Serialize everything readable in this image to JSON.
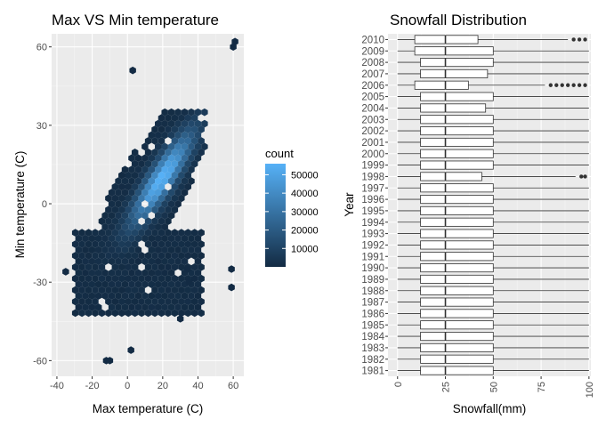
{
  "chart_data": [
    {
      "type": "heatmap",
      "subtype": "hexbin",
      "title": "Max VS Min temperature",
      "xlabel": "Max temperature (C)",
      "ylabel": "Min temperature (C)",
      "xlim": [
        -43,
        66
      ],
      "ylim": [
        -66,
        65
      ],
      "x_ticks": [
        -40,
        -20,
        0,
        20,
        40,
        60
      ],
      "y_ticks": [
        -60,
        -30,
        0,
        30,
        60
      ],
      "grid": true,
      "legend": {
        "title": "count",
        "position": "right",
        "breaks": [
          10000,
          20000,
          30000,
          40000,
          50000
        ],
        "labels": [
          "10000",
          "20000",
          "30000",
          "40000",
          "50000"
        ],
        "range": [
          0,
          56000
        ],
        "low_color": "#132B43",
        "high_color": "#56B1F7"
      },
      "density_model": {
        "peak": 56000,
        "center_x": 10,
        "center_y": 2,
        "core": [
          {
            "x": 0,
            "y": -4,
            "count": 38000
          },
          {
            "x": 10,
            "y": 2,
            "count": 44000
          },
          {
            "x": 20,
            "y": 8,
            "count": 48000
          },
          {
            "x": 26,
            "y": 12,
            "count": 56000
          }
        ],
        "outliers": [
          {
            "x": -35,
            "y": -26
          },
          {
            "x": -12,
            "y": -60
          },
          {
            "x": -10,
            "y": -60
          },
          {
            "x": 2,
            "y": -56
          },
          {
            "x": 3,
            "y": 51
          },
          {
            "x": 30,
            "y": -44
          },
          {
            "x": 59,
            "y": -25
          },
          {
            "x": 59,
            "y": -32
          },
          {
            "x": 60,
            "y": 60
          },
          {
            "x": 61,
            "y": 62
          },
          {
            "x": 35,
            "y": -30
          },
          {
            "x": 34,
            "y": -25
          }
        ]
      }
    },
    {
      "type": "boxplot",
      "orientation": "horizontal",
      "title": "Snowfall Distribution",
      "xlabel": "Snowfall(mm)",
      "ylabel": "Year",
      "xlim": [
        -5,
        101
      ],
      "x_ticks": [
        0,
        25,
        50,
        75,
        100
      ],
      "grid": true,
      "categories": [
        "1981",
        "1982",
        "1983",
        "1984",
        "1985",
        "1986",
        "1987",
        "1988",
        "1989",
        "1990",
        "1991",
        "1992",
        "1993",
        "1994",
        "1995",
        "1996",
        "1997",
        "1998",
        "1999",
        "2000",
        "2001",
        "2002",
        "2003",
        "2004",
        "2005",
        "2006",
        "2007",
        "2008",
        "2009",
        "2010"
      ],
      "series": [
        {
          "q1": 12,
          "median": 25,
          "q3": 50,
          "whisker_low": 0,
          "whisker_high": 100,
          "outliers": []
        },
        {
          "q1": 12,
          "median": 25,
          "q3": 50,
          "whisker_low": 0,
          "whisker_high": 100,
          "outliers": []
        },
        {
          "q1": 12,
          "median": 25,
          "q3": 50,
          "whisker_low": 0,
          "whisker_high": 100,
          "outliers": []
        },
        {
          "q1": 12,
          "median": 25,
          "q3": 50,
          "whisker_low": 0,
          "whisker_high": 100,
          "outliers": []
        },
        {
          "q1": 12,
          "median": 25,
          "q3": 50,
          "whisker_low": 0,
          "whisker_high": 100,
          "outliers": []
        },
        {
          "q1": 12,
          "median": 25,
          "q3": 50,
          "whisker_low": 0,
          "whisker_high": 100,
          "outliers": []
        },
        {
          "q1": 12,
          "median": 25,
          "q3": 50,
          "whisker_low": 0,
          "whisker_high": 100,
          "outliers": []
        },
        {
          "q1": 12,
          "median": 25,
          "q3": 50,
          "whisker_low": 0,
          "whisker_high": 100,
          "outliers": []
        },
        {
          "q1": 12,
          "median": 25,
          "q3": 50,
          "whisker_low": 0,
          "whisker_high": 100,
          "outliers": []
        },
        {
          "q1": 12,
          "median": 25,
          "q3": 50,
          "whisker_low": 0,
          "whisker_high": 100,
          "outliers": []
        },
        {
          "q1": 12,
          "median": 25,
          "q3": 50,
          "whisker_low": 0,
          "whisker_high": 100,
          "outliers": []
        },
        {
          "q1": 12,
          "median": 25,
          "q3": 50,
          "whisker_low": 0,
          "whisker_high": 100,
          "outliers": []
        },
        {
          "q1": 12,
          "median": 25,
          "q3": 50,
          "whisker_low": 0,
          "whisker_high": 100,
          "outliers": []
        },
        {
          "q1": 12,
          "median": 25,
          "q3": 50,
          "whisker_low": 0,
          "whisker_high": 100,
          "outliers": []
        },
        {
          "q1": 12,
          "median": 25,
          "q3": 50,
          "whisker_low": 0,
          "whisker_high": 100,
          "outliers": []
        },
        {
          "q1": 12,
          "median": 25,
          "q3": 50,
          "whisker_low": 0,
          "whisker_high": 100,
          "outliers": []
        },
        {
          "q1": 12,
          "median": 25,
          "q3": 50,
          "whisker_low": 0,
          "whisker_high": 100,
          "outliers": []
        },
        {
          "q1": 12,
          "median": 25,
          "q3": 44,
          "whisker_low": 0,
          "whisker_high": 93,
          "outliers": [
            96,
            98
          ]
        },
        {
          "q1": 12,
          "median": 25,
          "q3": 50,
          "whisker_low": 0,
          "whisker_high": 100,
          "outliers": []
        },
        {
          "q1": 12,
          "median": 25,
          "q3": 50,
          "whisker_low": 0,
          "whisker_high": 100,
          "outliers": []
        },
        {
          "q1": 12,
          "median": 25,
          "q3": 50,
          "whisker_low": 0,
          "whisker_high": 100,
          "outliers": []
        },
        {
          "q1": 12,
          "median": 25,
          "q3": 50,
          "whisker_low": 0,
          "whisker_high": 100,
          "outliers": []
        },
        {
          "q1": 12,
          "median": 25,
          "q3": 50,
          "whisker_low": 0,
          "whisker_high": 100,
          "outliers": []
        },
        {
          "q1": 12,
          "median": 25,
          "q3": 46,
          "whisker_low": 0,
          "whisker_high": 100,
          "outliers": []
        },
        {
          "q1": 12,
          "median": 25,
          "q3": 50,
          "whisker_low": 0,
          "whisker_high": 100,
          "outliers": []
        },
        {
          "q1": 9,
          "median": 25,
          "q3": 37,
          "whisker_low": 0,
          "whisker_high": 77,
          "outliers": [
            80,
            83,
            86,
            89,
            92,
            95,
            98
          ]
        },
        {
          "q1": 12,
          "median": 25,
          "q3": 47,
          "whisker_low": 0,
          "whisker_high": 100,
          "outliers": []
        },
        {
          "q1": 12,
          "median": 25,
          "q3": 50,
          "whisker_low": 0,
          "whisker_high": 100,
          "outliers": []
        },
        {
          "q1": 9,
          "median": 25,
          "q3": 50,
          "whisker_low": 0,
          "whisker_high": 100,
          "outliers": []
        },
        {
          "q1": 9,
          "median": 25,
          "q3": 42,
          "whisker_low": 0,
          "whisker_high": 89,
          "outliers": [
            92,
            95,
            98
          ]
        }
      ]
    }
  ]
}
